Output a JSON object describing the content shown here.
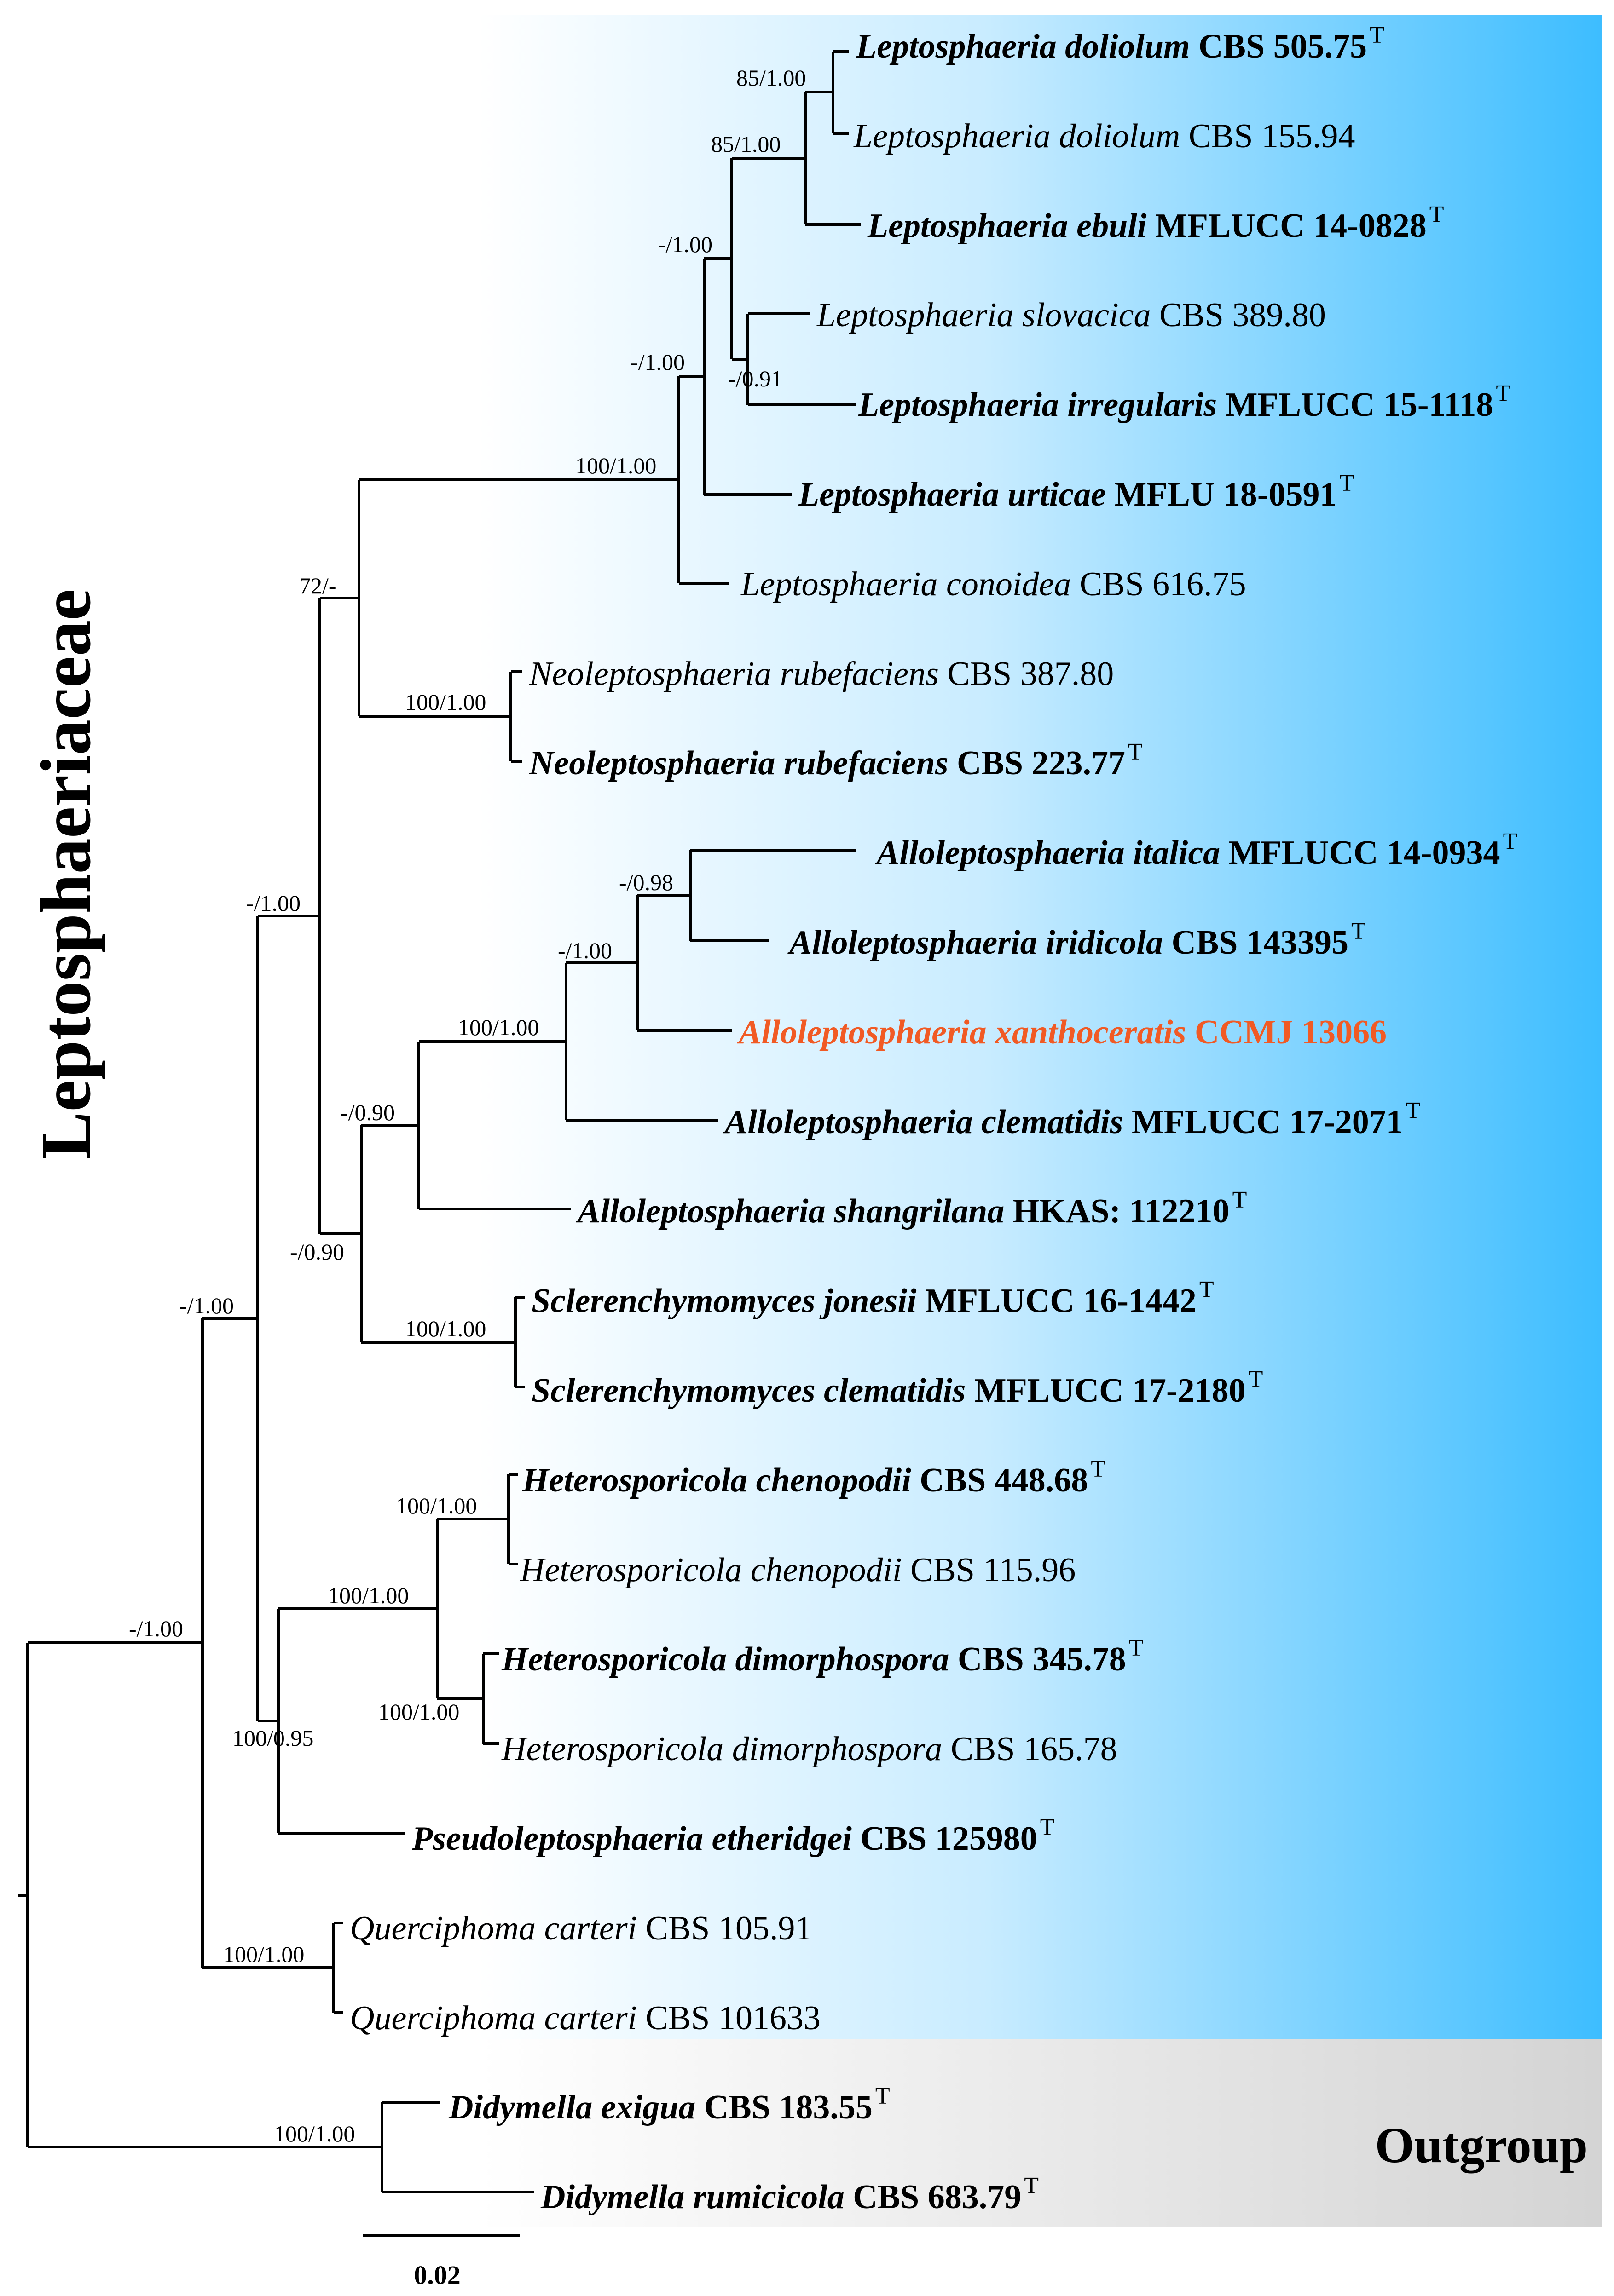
{
  "family_label": "Leptosphaeriaceae",
  "outgroup_label": "Outgroup",
  "scale_bar_label": "0.02",
  "type_marker": "T",
  "colors": {
    "ingroup_gradient_start": "#ffffff",
    "ingroup_gradient_end": "#3dbdff",
    "outgroup_gradient_start": "#ffffff",
    "outgroup_gradient_end": "#d4d4d4",
    "highlight": "#f15a24",
    "line": "#000000"
  },
  "taxa": [
    {
      "genus_species": "Leptosphaeria doliolum",
      "strain": "CBS 505.75",
      "bold": true,
      "type": true
    },
    {
      "genus_species": "Leptosphaeria doliolum",
      "strain": "CBS 155.94",
      "bold": false,
      "type": false
    },
    {
      "genus_species": "Leptosphaeria ebuli",
      "strain": "MFLUCC 14-0828",
      "bold": true,
      "type": true
    },
    {
      "genus_species": "Leptosphaeria slovacica",
      "strain": "CBS 389.80",
      "bold": false,
      "type": false
    },
    {
      "genus_species": "Leptosphaeria irregularis",
      "strain": "MFLUCC 15-1118",
      "bold": true,
      "type": true
    },
    {
      "genus_species": "Leptosphaeria urticae",
      "strain": "MFLU 18-0591",
      "bold": true,
      "type": true
    },
    {
      "genus_species": "Leptosphaeria conoidea",
      "strain": "CBS 616.75",
      "bold": false,
      "type": false
    },
    {
      "genus_species": "Neoleptosphaeria rubefaciens",
      "strain": "CBS 387.80",
      "bold": false,
      "type": false
    },
    {
      "genus_species": "Neoleptosphaeria rubefaciens",
      "strain": "CBS 223.77",
      "bold": true,
      "type": true
    },
    {
      "genus_species": "Alloleptosphaeria italica",
      "strain": "MFLUCC 14-0934",
      "bold": true,
      "type": true
    },
    {
      "genus_species": "Alloleptosphaeria iridicola",
      "strain": "CBS 143395",
      "bold": true,
      "type": true
    },
    {
      "genus_species": "Alloleptosphaeria xanthoceratis",
      "strain": "CCMJ 13066",
      "bold": true,
      "type": false,
      "highlight": true
    },
    {
      "genus_species": "Alloleptosphaeria clematidis",
      "strain": "MFLUCC 17-2071",
      "bold": true,
      "type": true
    },
    {
      "genus_species": "Alloleptosphaeria shangrilana",
      "strain": "HKAS: 112210",
      "bold": true,
      "type": true
    },
    {
      "genus_species": "Sclerenchymomyces jonesii",
      "strain": "MFLUCC 16-1442",
      "bold": true,
      "type": true
    },
    {
      "genus_species": "Sclerenchymomyces clematidis",
      "strain": "MFLUCC 17-2180",
      "bold": true,
      "type": true
    },
    {
      "genus_species": "Heterosporicola chenopodii",
      "strain": "CBS 448.68",
      "bold": true,
      "type": true
    },
    {
      "genus_species": "Heterosporicola chenopodii",
      "strain": "CBS 115.96",
      "bold": false,
      "type": false
    },
    {
      "genus_species": "Heterosporicola dimorphospora",
      "strain": "CBS 345.78",
      "bold": true,
      "type": true
    },
    {
      "genus_species": "Heterosporicola dimorphospora",
      "strain": "CBS 165.78",
      "bold": false,
      "type": false
    },
    {
      "genus_species": "Pseudoleptosphaeria etheridgei",
      "strain": "CBS 125980",
      "bold": true,
      "type": true
    },
    {
      "genus_species": "Querciphoma carteri",
      "strain": "CBS 105.91",
      "bold": false,
      "type": false
    },
    {
      "genus_species": "Querciphoma carteri",
      "strain": "CBS 101633",
      "bold": false,
      "type": false
    },
    {
      "genus_species": "Didymella exigua",
      "strain": "CBS 183.55",
      "bold": true,
      "type": true
    },
    {
      "genus_species": "Didymella rumicicola",
      "strain": "CBS 683.79",
      "bold": true,
      "type": true
    }
  ],
  "support_values": [
    "85/1.00",
    "85/1.00",
    "-/1.00",
    "-/0.91",
    "-/1.00",
    "100/1.00",
    "72/-",
    "100/1.00",
    "-/1.00",
    "-/0.98",
    "-/1.00",
    "100/1.00",
    "-/0.90",
    "-/0.90",
    "100/1.00",
    "-/1.00",
    "100/1.00",
    "100/1.00",
    "100/1.00",
    "100/0.95",
    "-/1.00",
    "100/1.00",
    "100/1.00"
  ]
}
